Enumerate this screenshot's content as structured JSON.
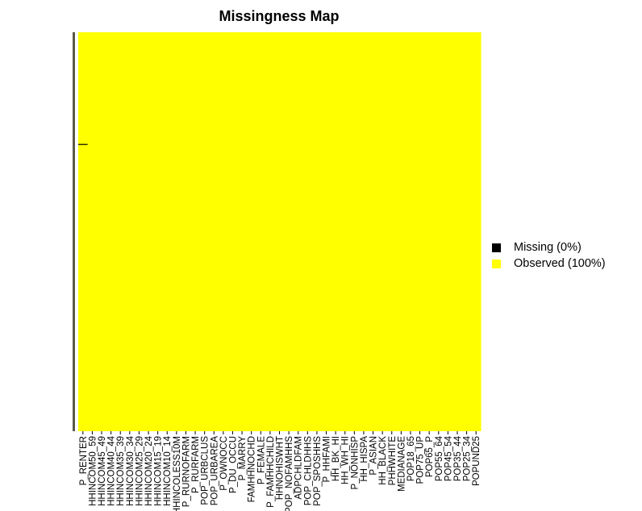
{
  "chart_data": {
    "type": "heatmap",
    "title": "Missingness Map",
    "xlabel": "",
    "ylabel": "",
    "columns": [
      "P_RENTER",
      "HHINCOM50_59",
      "HHINCOM45_49",
      "HHINCOM40_44",
      "HHINCOM35_39",
      "HHINCOM30_34",
      "HHINCOM25_29",
      "HHINCOM20_24",
      "HHINCOM15_19",
      "HHINCOM10_14",
      "HHINCOLESS10M",
      "P_RURNOFARM",
      "P_RURFARM",
      "POP_URBCLUS",
      "POP_URBAREA",
      "P_OWNOCC",
      "P_DU_OCCU",
      "P_MARRY",
      "FAMHHNOCHD",
      "P_FEMALE",
      "P_FAMHHCHILD",
      "HHNOHISWHT",
      "POP_NOFAMHHS",
      "ADPCHLDFAM",
      "POP_CHLDHHS",
      "POP_SPOSHHS",
      "P_HHFAMI",
      "HH_BK_HI",
      "HH_WH_HI",
      "P_NONHISP",
      "HH_HISPA",
      "P_ASIAN",
      "HH_BLACK",
      "PHHWHITE",
      "MEDIANAGE",
      "POP18_65",
      "POP75_UP",
      "POP65_P",
      "POP55_64",
      "POP45_54",
      "POP35_44",
      "POP25_34",
      "POPUND25"
    ],
    "legend": [
      {
        "label": "Missing (0%)",
        "color": "#000000"
      },
      {
        "label": "Observed (100%)",
        "color": "#ffff00"
      }
    ],
    "missing_percent": 0,
    "observed_percent": 100,
    "missing_marks": [
      {
        "column": "P_RENTER",
        "row_fraction": 0.28
      }
    ]
  }
}
